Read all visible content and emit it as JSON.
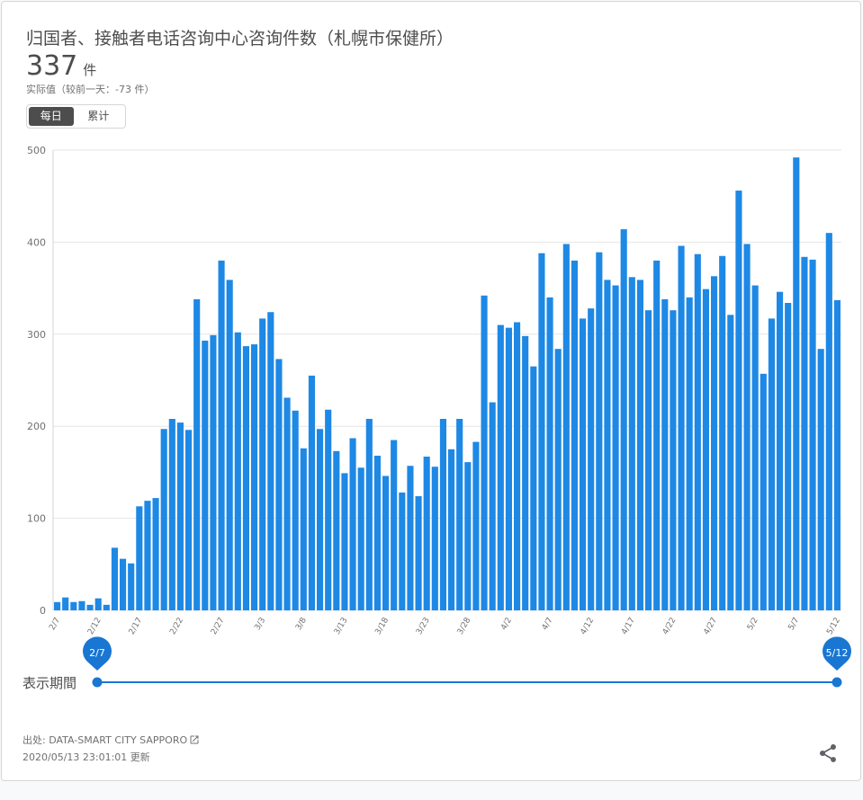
{
  "card": {
    "title": "归国者、接触者电话咨询中心咨询件数（札幌市保健所）",
    "value": "337",
    "unit": "件",
    "subtitle": "实际值（较前一天：-73 件）",
    "toggle": {
      "daily": "每日",
      "cumulative": "累计"
    }
  },
  "slider": {
    "label": "表示期間",
    "start_label": "2/7",
    "end_label": "5/12"
  },
  "footer": {
    "source": "出处: DATA-SMART CITY SAPPORO",
    "updated": "2020/05/13 23:01:01 更新"
  },
  "colors": {
    "bar": "#1e88e5",
    "slider": "#1976d2",
    "grid": "#e6e6e6"
  },
  "icons": {
    "share": "share-icon",
    "external": "external-link-icon"
  },
  "chart_data": {
    "type": "bar",
    "ylim": [
      0,
      500
    ],
    "yticks": [
      0,
      100,
      200,
      300,
      400,
      500
    ],
    "xtick_labels": [
      "2/7",
      "2/12",
      "2/17",
      "2/22",
      "2/27",
      "3/3",
      "3/8",
      "3/13",
      "3/18",
      "3/23",
      "3/28",
      "4/2",
      "4/7",
      "4/12",
      "4/17",
      "4/22",
      "4/27",
      "5/2",
      "5/7",
      "5/12"
    ],
    "series": [
      {
        "values": [
          9,
          14,
          9,
          10,
          6,
          13,
          6,
          68,
          56,
          51,
          113,
          119,
          122,
          197,
          208,
          204,
          196,
          338,
          293,
          299,
          380,
          359,
          302,
          287,
          289,
          317,
          324,
          273,
          231,
          217,
          176,
          255,
          197,
          218,
          173,
          149,
          187,
          155,
          208,
          168,
          146,
          185,
          128,
          157,
          124,
          167,
          156,
          208,
          175,
          208,
          161,
          183,
          342,
          226,
          310,
          307,
          313,
          298,
          265,
          388,
          340,
          284,
          398,
          380,
          317,
          328,
          389,
          359,
          353,
          414,
          362,
          359,
          326,
          380,
          338,
          326,
          396,
          340,
          387,
          349,
          363,
          385,
          321,
          456,
          398,
          353,
          257,
          317,
          346,
          334,
          492,
          384,
          381,
          284,
          410,
          337
        ]
      }
    ]
  }
}
